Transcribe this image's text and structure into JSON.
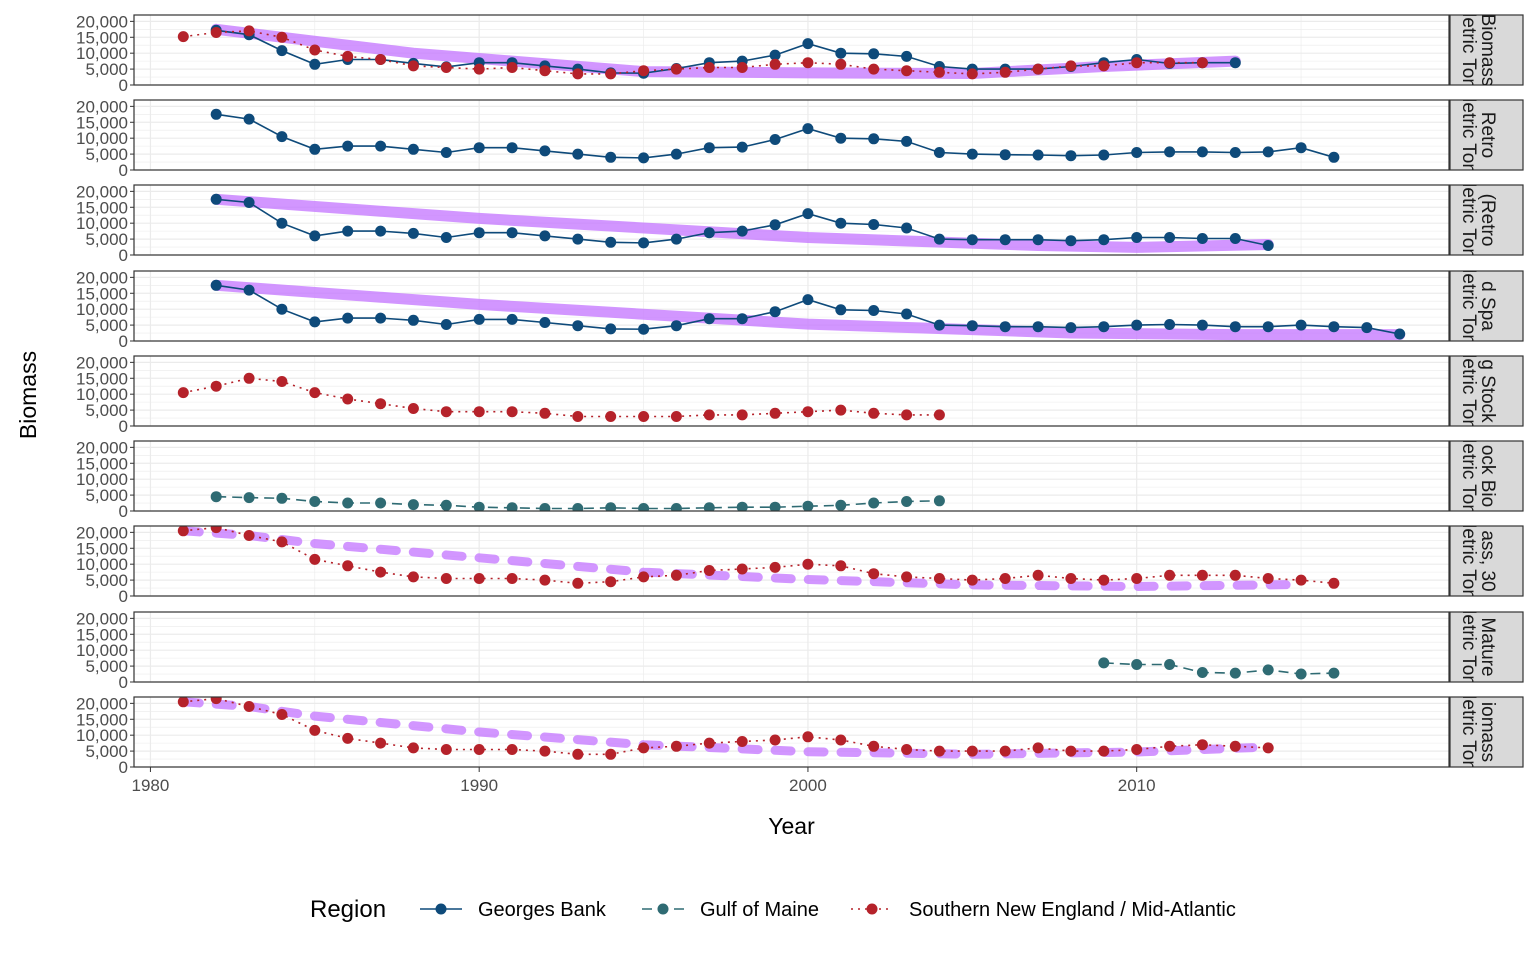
{
  "chart_data": {
    "type": "line",
    "xlabel": "Year",
    "ylabel": "Biomass",
    "xlim": [
      1979.5,
      2019.5
    ],
    "ylim": [
      0,
      22000
    ],
    "x_ticks": [
      1980,
      1990,
      2000,
      2010
    ],
    "x_tick_labels": [
      "1980",
      "1990",
      "2000",
      "2010"
    ],
    "y_ticks": [
      0,
      5000,
      10000,
      15000,
      20000
    ],
    "y_tick_labels": [
      "0",
      "5,000",
      "10,000",
      "15,000",
      "20,000"
    ],
    "grid": true,
    "legend": {
      "title": "Region",
      "position": "bottom",
      "entries": [
        {
          "label": "Georges Bank",
          "color": "#0e4a7a",
          "dash": "solid"
        },
        {
          "label": "Gulf of Maine",
          "color": "#2f6b73",
          "dash": "dashed"
        },
        {
          "label": "Southern New England / Mid-Atlantic",
          "color": "#b5222a",
          "dash": "dotted"
        }
      ]
    },
    "colors": {
      "trend": "#c77cff",
      "panel_border": "#333333",
      "strip_fill": "#d9d9d9",
      "grid": "#ebebeb"
    },
    "panels": [
      {
        "strip": [
          "Biomass",
          "Metric Tons"
        ],
        "trend": {
          "style": "solid",
          "points": [
            [
              1982,
              17500
            ],
            [
              1988,
              10000
            ],
            [
              1995,
              4200
            ],
            [
              2000,
              3800
            ],
            [
              2005,
              3600
            ],
            [
              2009,
              5800
            ],
            [
              2013,
              7500
            ]
          ]
        },
        "series": [
          {
            "region": "Georges Bank",
            "x": [
              1982,
              1983,
              1984,
              1985,
              1986,
              1987,
              1988,
              1989,
              1990,
              1991,
              1992,
              1993,
              1994,
              1995,
              1996,
              1997,
              1998,
              1999,
              2000,
              2001,
              2002,
              2003,
              2004,
              2005,
              2006,
              2007,
              2008,
              2009,
              2010,
              2011,
              2012,
              2013
            ],
            "y": [
              17200,
              15800,
              10800,
              6500,
              8000,
              8000,
              6800,
              5700,
              7000,
              7000,
              6000,
              5000,
              3800,
              3700,
              5200,
              7000,
              7500,
              9400,
              13000,
              10000,
              9800,
              9000,
              5800,
              5000,
              5000,
              5000,
              5800,
              7000,
              8000,
              6800,
              7000,
              7000
            ]
          },
          {
            "region": "Southern New England / Mid-Atlantic",
            "x": [
              1981,
              1982,
              1983,
              1984,
              1985,
              1986,
              1987,
              1988,
              1989,
              1990,
              1991,
              1992,
              1993,
              1994,
              1995,
              1996,
              1997,
              1998,
              1999,
              2000,
              2001,
              2002,
              2003,
              2004,
              2005,
              2006,
              2007,
              2008,
              2009,
              2010,
              2011,
              2012
            ],
            "y": [
              15200,
              16500,
              17000,
              15000,
              11000,
              9000,
              8000,
              6000,
              5500,
              5000,
              5500,
              4500,
              3500,
              3500,
              4500,
              5000,
              5500,
              5500,
              6500,
              7000,
              6500,
              5000,
              4500,
              4000,
              3500,
              4000,
              5000,
              6000,
              6000,
              7000,
              7000,
              7000
            ]
          }
        ]
      },
      {
        "strip": [
          "Retro",
          "Metric Tons"
        ],
        "trend": null,
        "series": [
          {
            "region": "Georges Bank",
            "x": [
              1982,
              1983,
              1984,
              1985,
              1986,
              1987,
              1988,
              1989,
              1990,
              1991,
              1992,
              1993,
              1994,
              1995,
              1996,
              1997,
              1998,
              1999,
              2000,
              2001,
              2002,
              2003,
              2004,
              2005,
              2006,
              2007,
              2008,
              2009,
              2010,
              2011,
              2012,
              2013,
              2014,
              2015,
              2016
            ],
            "y": [
              17500,
              16000,
              10500,
              6500,
              7500,
              7500,
              6500,
              5500,
              7000,
              7000,
              6000,
              5000,
              4000,
              3800,
              5000,
              7000,
              7200,
              9600,
              13000,
              10000,
              9800,
              9000,
              5500,
              5000,
              4800,
              4700,
              4500,
              4700,
              5500,
              5700,
              5700,
              5500,
              5700,
              7000,
              4000
            ]
          }
        ]
      },
      {
        "strip": [
          "(Retro",
          "Metric Tons"
        ],
        "trend": {
          "style": "solid",
          "points": [
            [
              1982,
              17500
            ],
            [
              1990,
              11500
            ],
            [
              2000,
              5500
            ],
            [
              2007,
              3000
            ],
            [
              2010,
              2400
            ],
            [
              2014,
              3300
            ]
          ]
        },
        "series": [
          {
            "region": "Georges Bank",
            "x": [
              1982,
              1983,
              1984,
              1985,
              1986,
              1987,
              1988,
              1989,
              1990,
              1991,
              1992,
              1993,
              1994,
              1995,
              1996,
              1997,
              1998,
              1999,
              2000,
              2001,
              2002,
              2003,
              2004,
              2005,
              2006,
              2007,
              2008,
              2009,
              2010,
              2011,
              2012,
              2013,
              2014
            ],
            "y": [
              17500,
              16500,
              10000,
              6000,
              7500,
              7500,
              6800,
              5500,
              7000,
              7000,
              6000,
              5000,
              4000,
              3800,
              5000,
              7000,
              7500,
              9500,
              13000,
              10000,
              9600,
              8500,
              5000,
              4800,
              4800,
              4800,
              4500,
              4800,
              5500,
              5500,
              5200,
              5200,
              3000
            ]
          }
        ]
      },
      {
        "strip": [
          "d Spa",
          "Metric Tons"
        ],
        "trend": {
          "style": "solid",
          "points": [
            [
              1982,
              17500
            ],
            [
              1990,
              11500
            ],
            [
              2000,
              5300
            ],
            [
              2008,
              2500
            ],
            [
              2013,
              2000
            ],
            [
              2018,
              2000
            ]
          ]
        },
        "series": [
          {
            "region": "Georges Bank",
            "x": [
              1982,
              1983,
              1984,
              1985,
              1986,
              1987,
              1988,
              1989,
              1990,
              1991,
              1992,
              1993,
              1994,
              1995,
              1996,
              1997,
              1998,
              1999,
              2000,
              2001,
              2002,
              2003,
              2004,
              2005,
              2006,
              2007,
              2008,
              2009,
              2010,
              2011,
              2012,
              2013,
              2014,
              2015,
              2016,
              2017,
              2018
            ],
            "y": [
              17500,
              16000,
              10000,
              6000,
              7200,
              7200,
              6500,
              5200,
              6800,
              6800,
              5800,
              4800,
              3800,
              3700,
              4800,
              7000,
              7000,
              9200,
              13000,
              9800,
              9600,
              8500,
              5000,
              4800,
              4500,
              4500,
              4200,
              4500,
              5000,
              5200,
              5000,
              4500,
              4500,
              5000,
              4500,
              4200,
              2200
            ]
          }
        ]
      },
      {
        "strip": [
          "g Stock",
          "Metric Tons"
        ],
        "trend": null,
        "series": [
          {
            "region": "Southern New England / Mid-Atlantic",
            "x": [
              1981,
              1982,
              1983,
              1984,
              1985,
              1986,
              1987,
              1988,
              1989,
              1990,
              1991,
              1992,
              1993,
              1994,
              1995,
              1996,
              1997,
              1998,
              1999,
              2000,
              2001,
              2002,
              2003,
              2004
            ],
            "y": [
              10500,
              12500,
              15000,
              14000,
              10500,
              8500,
              7000,
              5500,
              4500,
              4500,
              4500,
              4000,
              3000,
              3000,
              3000,
              3000,
              3500,
              3500,
              4000,
              4500,
              5000,
              4000,
              3500,
              3500
            ]
          }
        ]
      },
      {
        "strip": [
          "ock Bio",
          "Metric Tons"
        ],
        "trend": null,
        "series": [
          {
            "region": "Gulf of Maine",
            "x": [
              1982,
              1983,
              1984,
              1985,
              1986,
              1987,
              1988,
              1989,
              1990,
              1991,
              1992,
              1993,
              1994,
              1995,
              1996,
              1997,
              1998,
              1999,
              2000,
              2001,
              2002,
              2003,
              2004
            ],
            "y": [
              4500,
              4200,
              4000,
              3000,
              2500,
              2500,
              2000,
              1800,
              1200,
              1000,
              800,
              800,
              1000,
              800,
              800,
              1000,
              1200,
              1200,
              1500,
              1800,
              2500,
              3000,
              3200
            ]
          }
        ]
      },
      {
        "strip": [
          "ass, 30",
          "Metric Tons"
        ],
        "trend": {
          "style": "dashed",
          "points": [
            [
              1981,
              20500
            ],
            [
              1983,
              19000
            ],
            [
              1985,
              16500
            ],
            [
              1990,
              12000
            ],
            [
              1995,
              7500
            ],
            [
              2000,
              5200
            ],
            [
              2005,
              3500
            ],
            [
              2010,
              3000
            ],
            [
              2015,
              3600
            ]
          ]
        },
        "series": [
          {
            "region": "Southern New England / Mid-Atlantic",
            "x": [
              1981,
              1982,
              1983,
              1984,
              1985,
              1986,
              1987,
              1988,
              1989,
              1990,
              1991,
              1992,
              1993,
              1994,
              1995,
              1996,
              1997,
              1998,
              1999,
              2000,
              2001,
              2002,
              2003,
              2004,
              2005,
              2006,
              2007,
              2008,
              2009,
              2010,
              2011,
              2012,
              2013,
              2014,
              2015,
              2016
            ],
            "y": [
              20500,
              21500,
              19000,
              17000,
              11500,
              9500,
              7500,
              6000,
              5500,
              5500,
              5500,
              5000,
              4000,
              4500,
              6000,
              6500,
              8000,
              8500,
              9000,
              10000,
              9500,
              7000,
              6000,
              5500,
              5000,
              5500,
              6500,
              5500,
              5000,
              5500,
              6500,
              6500,
              6500,
              5500,
              5000,
              4000
            ]
          }
        ]
      },
      {
        "strip": [
          "Mature",
          "Metric Tons"
        ],
        "trend": null,
        "series": [
          {
            "region": "Gulf of Maine",
            "x": [
              2009,
              2010,
              2011,
              2012,
              2013,
              2014,
              2015,
              2016
            ],
            "y": [
              6000,
              5500,
              5500,
              3000,
              2800,
              3800,
              2500,
              2800
            ]
          }
        ]
      },
      {
        "strip": [
          "iomass",
          "Metric Tons"
        ],
        "trend": {
          "style": "dashed",
          "points": [
            [
              1981,
              20500
            ],
            [
              1983,
              19000
            ],
            [
              1985,
              16000
            ],
            [
              1990,
              11000
            ],
            [
              1995,
              7000
            ],
            [
              2000,
              4800
            ],
            [
              2005,
              4000
            ],
            [
              2010,
              4700
            ],
            [
              2014,
              6300
            ]
          ]
        },
        "series": [
          {
            "region": "Southern New England / Mid-Atlantic",
            "x": [
              1981,
              1982,
              1983,
              1984,
              1985,
              1986,
              1987,
              1988,
              1989,
              1990,
              1991,
              1992,
              1993,
              1994,
              1995,
              1996,
              1997,
              1998,
              1999,
              2000,
              2001,
              2002,
              2003,
              2004,
              2005,
              2006,
              2007,
              2008,
              2009,
              2010,
              2011,
              2012,
              2013,
              2014
            ],
            "y": [
              20500,
              21500,
              19000,
              16500,
              11500,
              9000,
              7500,
              6000,
              5500,
              5500,
              5500,
              5000,
              4000,
              4000,
              6000,
              6500,
              7500,
              8000,
              8500,
              9500,
              8500,
              6500,
              5500,
              5000,
              5000,
              5000,
              6000,
              5000,
              5000,
              5500,
              6500,
              7000,
              6500,
              6000
            ]
          }
        ]
      }
    ]
  }
}
